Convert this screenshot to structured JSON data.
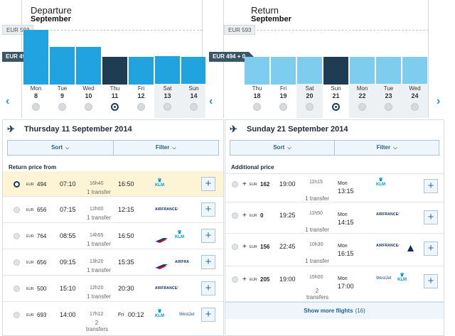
{
  "departure": {
    "title": "Departure",
    "month": "September",
    "high_price": "EUR 593",
    "low_price": "EUR 494",
    "days": [
      {
        "dow": "Mon",
        "date": "8"
      },
      {
        "dow": "Tue",
        "date": "9"
      },
      {
        "dow": "Wed",
        "date": "10"
      },
      {
        "dow": "Thu",
        "date": "11",
        "selected": true
      },
      {
        "dow": "Fri",
        "date": "12"
      },
      {
        "dow": "Sat",
        "date": "13"
      },
      {
        "dow": "Sun",
        "date": "14"
      }
    ],
    "bar_prices": [
      593,
      530,
      530,
      494,
      494,
      496,
      494
    ],
    "heading": "Thursday 11 September 2014",
    "sort_label": "Sort",
    "filter_label": "Filter",
    "list_title": "Return price from",
    "flights": [
      {
        "currency": "EUR",
        "price": "494",
        "dep": "07:10",
        "duration": "16h40",
        "arr": "16:50",
        "transfers": "1 transfer",
        "airlines": [
          "KLM"
        ],
        "selected": true
      },
      {
        "currency": "EUR",
        "price": "656",
        "dep": "07:15",
        "duration": "12h00",
        "arr": "12:15",
        "transfers": "1 transfer",
        "airlines": [
          "AIRFRANCE"
        ]
      },
      {
        "currency": "EUR",
        "price": "764",
        "dep": "08:55",
        "duration": "14h55",
        "arr": "16:50",
        "transfers": "1 transfer",
        "airlines": [
          "KENYA",
          "KLM"
        ]
      },
      {
        "currency": "EUR",
        "price": "656",
        "dep": "09:15",
        "duration": "13h20",
        "arr": "15:35",
        "transfers": "1 transfer",
        "airlines": [
          "KENYA",
          "AIRFRA"
        ]
      },
      {
        "currency": "EUR",
        "price": "500",
        "dep": "15:10",
        "duration": "12h20",
        "arr": "20:30",
        "transfers": "1 transfer",
        "airlines": [
          "AIRFRANCE"
        ]
      },
      {
        "currency": "EUR",
        "price": "693",
        "dep": "14:00",
        "duration": "17h12",
        "arr_day": "Fri",
        "arr": "00:12",
        "transfers": "2 transfers",
        "airlines": [
          "KLM",
          "WestJet"
        ]
      }
    ]
  },
  "return": {
    "title": "Return",
    "month": "September",
    "high_price": "EUR 593",
    "low_price": "EUR 494",
    "low_delta": "+ 0",
    "days": [
      {
        "dow": "Thu",
        "date": "18"
      },
      {
        "dow": "Fri",
        "date": "19"
      },
      {
        "dow": "Sat",
        "date": "20"
      },
      {
        "dow": "Sun",
        "date": "21",
        "selected": true
      },
      {
        "dow": "Mon",
        "date": "22"
      },
      {
        "dow": "Tue",
        "date": "23"
      },
      {
        "dow": "Wed",
        "date": "24"
      }
    ],
    "bar_prices": [
      494,
      494,
      494,
      494,
      494,
      494,
      494
    ],
    "heading": "Sunday 21 September 2014",
    "sort_label": "Sort",
    "filter_label": "Filter",
    "list_title": "Additional price",
    "flights": [
      {
        "plus": "+",
        "currency": "EUR",
        "price": "162",
        "dep": "19:00",
        "duration": "11h15",
        "arr_day": "Mon",
        "arr": "13:15",
        "transfers": "1 transfer",
        "airlines": [
          "KLM"
        ]
      },
      {
        "plus": "+",
        "currency": "EUR",
        "price": "0",
        "dep": "19:25",
        "duration": "11h50",
        "arr_day": "Mon",
        "arr": "14:15",
        "transfers": "1 transfer",
        "airlines": [
          "AIRFRANCE"
        ]
      },
      {
        "plus": "+",
        "currency": "EUR",
        "price": "156",
        "dep": "22:45",
        "duration": "10h30",
        "arr_day": "Mon",
        "arr": "16:15",
        "transfers": "1 transfer",
        "airlines": [
          "AIRFRANCE",
          "DELTA"
        ]
      },
      {
        "plus": "+",
        "currency": "EUR",
        "price": "205",
        "dep": "19:00",
        "duration": "15h00",
        "arr_day": "Mon",
        "arr": "17:00",
        "transfers": "2 transfers",
        "airlines": [
          "WestJet",
          "KLM"
        ]
      }
    ],
    "show_more_label": "Show more flights",
    "show_more_count": "(16)"
  },
  "colors": {
    "bar_light": "#21a3e0",
    "bar_light_return": "#7fcdee",
    "bar_selected": "#1e3d52",
    "accent": "#2c8fd0",
    "highlight_row": "#fdf4d6"
  }
}
